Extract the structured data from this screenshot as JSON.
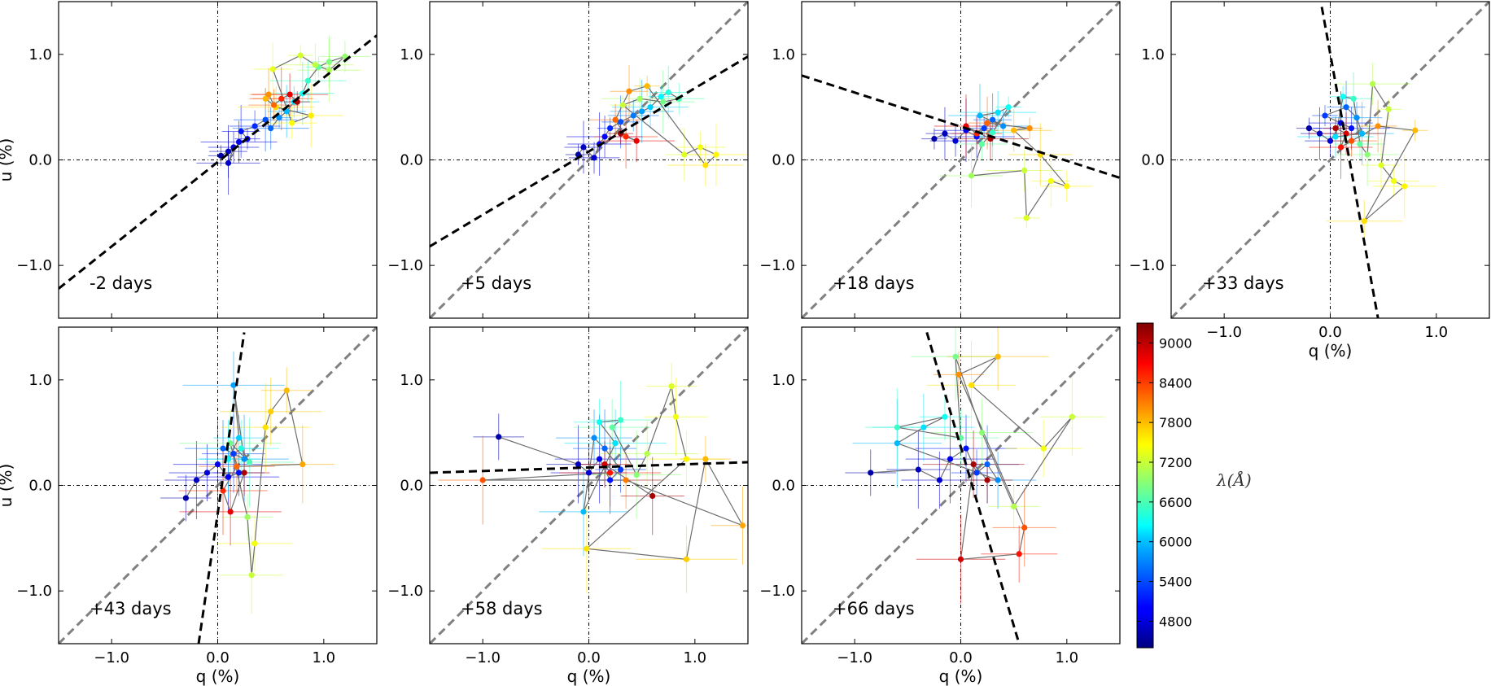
{
  "chart_data": {
    "type": "scatter",
    "description_axes": {
      "xlabel": "q (%)",
      "ylabel": "u (%)",
      "xlim": [
        -1.5,
        1.5
      ],
      "ylim": [
        -1.5,
        1.5
      ]
    },
    "tick_values": [
      -1.0,
      0.0,
      1.0
    ],
    "tick_labels": [
      "−1.0",
      "0.0",
      "1.0"
    ],
    "reference_line": {
      "color": "#808080",
      "style": "dashed",
      "slope": 1.0
    },
    "panels": [
      {
        "id": "p1",
        "label": "-2 days",
        "row": 0,
        "col": 0,
        "show_xlabel": false,
        "show_ylabel": true,
        "show_grey": false,
        "black_line": [
          [
            -1.5,
            -1.22
          ],
          [
            1.5,
            1.18
          ]
        ],
        "points": [
          [
            0.03,
            0.04,
            4600
          ],
          [
            0.1,
            0.08,
            4700
          ],
          [
            0.15,
            0.12,
            4800
          ],
          [
            0.1,
            -0.03,
            4750
          ],
          [
            0.2,
            0.17,
            4900
          ],
          [
            0.28,
            0.2,
            5000
          ],
          [
            0.22,
            0.27,
            5100
          ],
          [
            0.35,
            0.32,
            5200
          ],
          [
            0.45,
            0.38,
            5400
          ],
          [
            0.5,
            0.3,
            5500
          ],
          [
            0.58,
            0.4,
            5700
          ],
          [
            0.65,
            0.46,
            5900
          ],
          [
            0.72,
            0.55,
            6100
          ],
          [
            0.8,
            0.63,
            6300
          ],
          [
            0.85,
            0.75,
            6500
          ],
          [
            0.95,
            0.88,
            6700
          ],
          [
            1.05,
            0.93,
            6850
          ],
          [
            1.2,
            0.98,
            6950
          ],
          [
            1.05,
            0.85,
            7050
          ],
          [
            0.92,
            0.9,
            7150
          ],
          [
            0.78,
            0.99,
            7250
          ],
          [
            0.52,
            0.86,
            7350
          ],
          [
            0.7,
            0.35,
            7450
          ],
          [
            0.88,
            0.42,
            7550
          ],
          [
            0.55,
            0.5,
            7650
          ],
          [
            0.45,
            0.58,
            7800
          ],
          [
            0.48,
            0.62,
            8000
          ],
          [
            0.53,
            0.52,
            8200
          ],
          [
            0.6,
            0.58,
            8500
          ],
          [
            0.68,
            0.62,
            8800
          ],
          [
            0.75,
            0.55,
            9100
          ]
        ]
      },
      {
        "id": "p2",
        "label": "+5 days",
        "row": 0,
        "col": 1,
        "show_xlabel": false,
        "show_ylabel": false,
        "show_grey": true,
        "black_line": [
          [
            -1.5,
            -0.82
          ],
          [
            1.5,
            0.98
          ]
        ],
        "points": [
          [
            -0.1,
            0.05,
            4600
          ],
          [
            -0.05,
            0.12,
            4700
          ],
          [
            0.05,
            0.02,
            4800
          ],
          [
            0.1,
            0.15,
            4900
          ],
          [
            0.15,
            0.22,
            5000
          ],
          [
            0.2,
            0.3,
            5200
          ],
          [
            0.3,
            0.36,
            5400
          ],
          [
            0.42,
            0.42,
            5600
          ],
          [
            0.5,
            0.46,
            5800
          ],
          [
            0.58,
            0.5,
            6000
          ],
          [
            0.68,
            0.6,
            6200
          ],
          [
            0.75,
            0.64,
            6400
          ],
          [
            0.85,
            0.58,
            6600
          ],
          [
            0.7,
            0.55,
            6800
          ],
          [
            0.48,
            0.58,
            7000
          ],
          [
            0.32,
            0.52,
            7200
          ],
          [
            0.9,
            0.05,
            7300
          ],
          [
            1.05,
            0.12,
            7400
          ],
          [
            1.2,
            0.05,
            7500
          ],
          [
            1.1,
            -0.05,
            7600
          ],
          [
            0.55,
            0.7,
            7800
          ],
          [
            0.38,
            0.65,
            8000
          ],
          [
            0.25,
            0.38,
            8200
          ],
          [
            0.35,
            0.22,
            8500
          ],
          [
            0.45,
            0.18,
            8800
          ],
          [
            0.3,
            0.25,
            9100
          ]
        ]
      },
      {
        "id": "p3",
        "label": "+18 days",
        "row": 0,
        "col": 2,
        "show_xlabel": false,
        "show_ylabel": false,
        "show_grey": true,
        "black_line": [
          [
            -1.5,
            0.8
          ],
          [
            1.5,
            -0.17
          ]
        ],
        "points": [
          [
            -0.25,
            0.2,
            4600
          ],
          [
            -0.15,
            0.25,
            4700
          ],
          [
            -0.05,
            0.18,
            4800
          ],
          [
            0.05,
            0.28,
            4900
          ],
          [
            0.15,
            0.22,
            5100
          ],
          [
            0.22,
            0.3,
            5300
          ],
          [
            0.3,
            0.38,
            5500
          ],
          [
            0.4,
            0.32,
            5700
          ],
          [
            0.18,
            0.42,
            5900
          ],
          [
            0.35,
            0.45,
            6100
          ],
          [
            0.45,
            0.5,
            6300
          ],
          [
            0.3,
            0.26,
            6500
          ],
          [
            0.2,
            0.15,
            6700
          ],
          [
            0.1,
            -0.15,
            7000
          ],
          [
            0.6,
            -0.1,
            7200
          ],
          [
            0.62,
            -0.55,
            7300
          ],
          [
            0.85,
            -0.2,
            7400
          ],
          [
            1.0,
            -0.25,
            7500
          ],
          [
            0.75,
            0.05,
            7650
          ],
          [
            0.5,
            0.28,
            7800
          ],
          [
            0.65,
            0.3,
            8000
          ],
          [
            0.25,
            0.35,
            8200
          ],
          [
            0.15,
            0.25,
            8500
          ],
          [
            0.05,
            0.32,
            8800
          ],
          [
            0.28,
            0.2,
            9100
          ]
        ]
      },
      {
        "id": "p4",
        "label": "+33 days",
        "row": 0,
        "col": 3,
        "show_xlabel": true,
        "show_ylabel": false,
        "show_grey": true,
        "black_line": [
          [
            -0.08,
            1.45
          ],
          [
            0.45,
            -1.5
          ]
        ],
        "points": [
          [
            -0.2,
            0.3,
            4600
          ],
          [
            -0.1,
            0.25,
            4700
          ],
          [
            0.0,
            0.18,
            4800
          ],
          [
            0.1,
            0.35,
            4900
          ],
          [
            0.2,
            0.3,
            5100
          ],
          [
            -0.05,
            0.42,
            5300
          ],
          [
            0.15,
            0.5,
            5500
          ],
          [
            0.25,
            0.4,
            5700
          ],
          [
            0.3,
            0.25,
            5900
          ],
          [
            0.05,
            0.22,
            6100
          ],
          [
            0.12,
            0.6,
            6300
          ],
          [
            0.22,
            0.58,
            6500
          ],
          [
            0.28,
            0.15,
            6700
          ],
          [
            0.35,
            0.05,
            6900
          ],
          [
            0.4,
            0.72,
            7100
          ],
          [
            0.55,
            0.48,
            7200
          ],
          [
            0.48,
            -0.05,
            7300
          ],
          [
            0.6,
            -0.2,
            7400
          ],
          [
            0.7,
            -0.25,
            7500
          ],
          [
            0.32,
            -0.58,
            7600
          ],
          [
            0.8,
            0.28,
            7800
          ],
          [
            0.45,
            0.32,
            8000
          ],
          [
            0.2,
            0.18,
            8300
          ],
          [
            0.1,
            0.12,
            8600
          ],
          [
            0.15,
            0.25,
            8900
          ],
          [
            0.05,
            0.3,
            9100
          ]
        ]
      },
      {
        "id": "p5",
        "label": "+43 days",
        "row": 1,
        "col": 0,
        "show_xlabel": true,
        "show_ylabel": true,
        "show_grey": true,
        "black_line": [
          [
            -0.18,
            -1.5
          ],
          [
            0.25,
            1.45
          ]
        ],
        "points": [
          [
            -0.3,
            -0.12,
            4600
          ],
          [
            -0.2,
            0.05,
            4700
          ],
          [
            -0.1,
            0.12,
            4800
          ],
          [
            0.0,
            0.2,
            4900
          ],
          [
            0.1,
            0.08,
            5000
          ],
          [
            0.2,
            0.12,
            5100
          ],
          [
            0.15,
            0.3,
            5300
          ],
          [
            0.05,
            0.35,
            5500
          ],
          [
            0.25,
            0.25,
            5700
          ],
          [
            0.15,
            0.95,
            5800
          ],
          [
            0.2,
            0.45,
            6000
          ],
          [
            0.1,
            0.25,
            6200
          ],
          [
            0.22,
            0.35,
            6400
          ],
          [
            0.3,
            0.22,
            6600
          ],
          [
            0.12,
            0.4,
            6800
          ],
          [
            0.28,
            -0.3,
            7000
          ],
          [
            0.32,
            -0.85,
            7200
          ],
          [
            0.35,
            -0.55,
            7400
          ],
          [
            0.45,
            0.55,
            7600
          ],
          [
            0.5,
            0.7,
            7700
          ],
          [
            0.65,
            0.9,
            7800
          ],
          [
            0.8,
            0.2,
            7900
          ],
          [
            0.18,
            0.18,
            8200
          ],
          [
            0.05,
            -0.05,
            8500
          ],
          [
            0.12,
            -0.25,
            8800
          ],
          [
            0.25,
            0.12,
            9100
          ]
        ]
      },
      {
        "id": "p6",
        "label": "+58 days",
        "row": 1,
        "col": 1,
        "show_xlabel": true,
        "show_ylabel": false,
        "show_grey": true,
        "black_line": [
          [
            -1.5,
            0.12
          ],
          [
            1.5,
            0.22
          ]
        ],
        "points": [
          [
            -0.85,
            0.46,
            4600
          ],
          [
            -0.1,
            0.2,
            4700
          ],
          [
            0.0,
            0.12,
            4800
          ],
          [
            0.1,
            0.25,
            4900
          ],
          [
            0.2,
            0.05,
            5100
          ],
          [
            0.3,
            0.15,
            5300
          ],
          [
            0.15,
            0.35,
            5500
          ],
          [
            0.05,
            0.45,
            5700
          ],
          [
            -0.05,
            -0.25,
            5900
          ],
          [
            0.25,
            0.4,
            6100
          ],
          [
            0.1,
            0.6,
            6300
          ],
          [
            0.3,
            0.62,
            6500
          ],
          [
            0.22,
            0.55,
            6700
          ],
          [
            0.45,
            0.1,
            6900
          ],
          [
            0.55,
            0.3,
            7100
          ],
          [
            0.78,
            0.94,
            7300
          ],
          [
            0.82,
            0.65,
            7400
          ],
          [
            0.92,
            0.25,
            7500
          ],
          [
            -0.02,
            -0.6,
            7600
          ],
          [
            0.92,
            -0.7,
            7700
          ],
          [
            1.1,
            0.25,
            7800
          ],
          [
            1.45,
            -0.38,
            7900
          ],
          [
            0.35,
            0.05,
            8100
          ],
          [
            -1.0,
            0.05,
            8300
          ],
          [
            0.2,
            0.12,
            8600
          ],
          [
            0.15,
            0.2,
            8900
          ],
          [
            0.6,
            -0.1,
            9100
          ]
        ]
      },
      {
        "id": "p7",
        "label": "+66 days",
        "row": 1,
        "col": 2,
        "show_xlabel": true,
        "show_ylabel": false,
        "show_grey": true,
        "black_line": [
          [
            -0.32,
            1.45
          ],
          [
            0.55,
            -1.5
          ]
        ],
        "points": [
          [
            -0.85,
            0.12,
            4600
          ],
          [
            -0.4,
            0.15,
            4700
          ],
          [
            -0.2,
            0.05,
            4800
          ],
          [
            -0.1,
            0.25,
            4900
          ],
          [
            0.05,
            0.35,
            5100
          ],
          [
            0.15,
            0.12,
            5300
          ],
          [
            0.25,
            0.2,
            5500
          ],
          [
            0.35,
            0.05,
            5700
          ],
          [
            -0.6,
            0.4,
            5900
          ],
          [
            -0.35,
            0.55,
            6100
          ],
          [
            -0.15,
            0.65,
            6300
          ],
          [
            -0.6,
            0.55,
            6500
          ],
          [
            0.0,
            0.45,
            6700
          ],
          [
            -0.05,
            1.22,
            6800
          ],
          [
            0.2,
            0.5,
            6900
          ],
          [
            0.5,
            -0.2,
            7100
          ],
          [
            1.05,
            0.65,
            7200
          ],
          [
            0.78,
            0.35,
            7400
          ],
          [
            0.1,
            0.95,
            7600
          ],
          [
            0.35,
            1.22,
            7800
          ],
          [
            -0.02,
            1.05,
            8000
          ],
          [
            0.6,
            -0.4,
            8300
          ],
          [
            0.55,
            -0.65,
            8600
          ],
          [
            0.0,
            -0.7,
            8900
          ],
          [
            0.12,
            0.2,
            9100
          ],
          [
            0.25,
            0.05,
            9100
          ]
        ]
      }
    ],
    "colorbar": {
      "label": "λ(Å)",
      "range": [
        4400,
        9300
      ],
      "ticks": [
        "4800",
        "5400",
        "6000",
        "6600",
        "7200",
        "7800",
        "8400",
        "9000"
      ],
      "colormap": "jet"
    }
  }
}
